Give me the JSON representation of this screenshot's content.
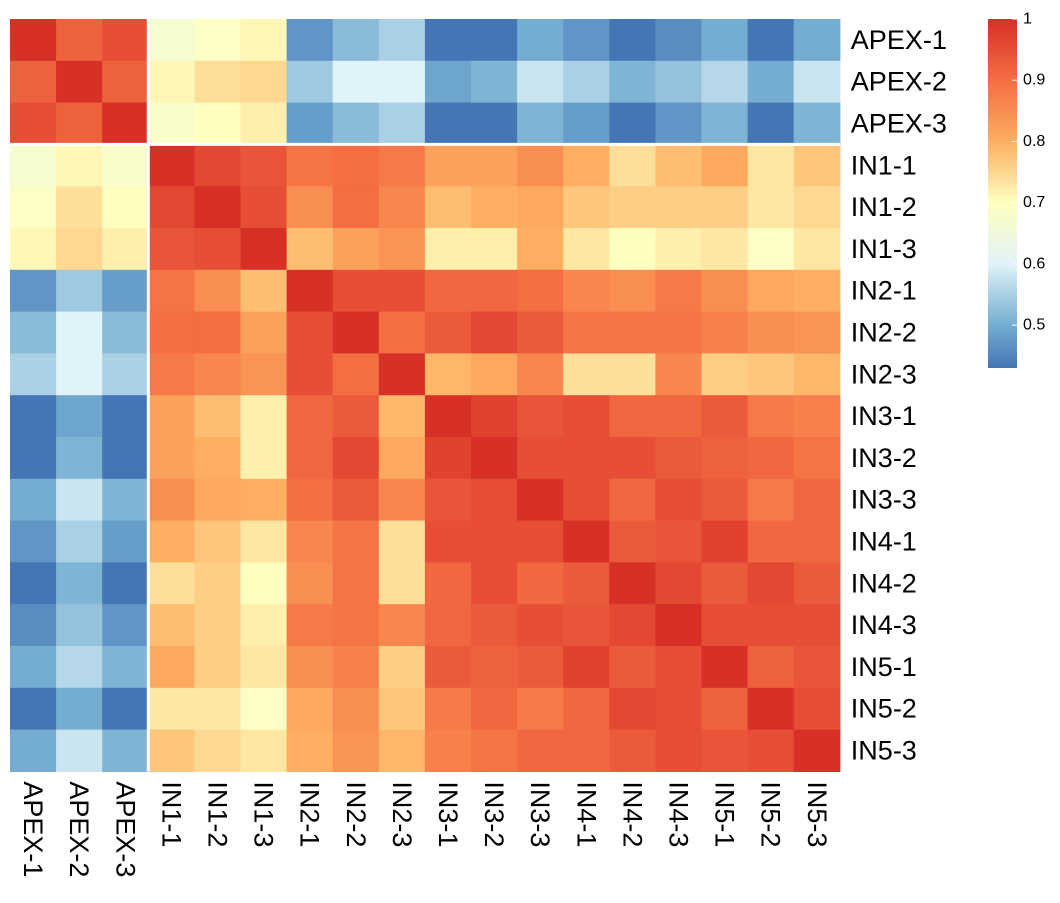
{
  "chart_data": {
    "type": "heatmap",
    "title": "",
    "xlabel": "",
    "ylabel": "",
    "row_labels": [
      "APEX-1",
      "APEX-2",
      "APEX-3",
      "IN1-1",
      "IN1-2",
      "IN1-3",
      "IN2-1",
      "IN2-2",
      "IN2-3",
      "IN3-1",
      "IN3-2",
      "IN3-3",
      "IN4-1",
      "IN4-2",
      "IN4-3",
      "IN5-1",
      "IN5-2",
      "IN5-3"
    ],
    "col_labels": [
      "APEX-1",
      "APEX-2",
      "APEX-3",
      "IN1-1",
      "IN1-2",
      "IN1-3",
      "IN2-1",
      "IN2-2",
      "IN2-3",
      "IN3-1",
      "IN3-2",
      "IN3-3",
      "IN4-1",
      "IN4-2",
      "IN4-3",
      "IN5-1",
      "IN5-2",
      "IN5-3"
    ],
    "values": [
      [
        1.0,
        0.92,
        0.95,
        0.67,
        0.69,
        0.71,
        0.47,
        0.52,
        0.55,
        0.43,
        0.43,
        0.5,
        0.47,
        0.43,
        0.46,
        0.5,
        0.43,
        0.5
      ],
      [
        0.92,
        1.0,
        0.92,
        0.71,
        0.74,
        0.75,
        0.54,
        0.6,
        0.6,
        0.49,
        0.51,
        0.58,
        0.55,
        0.51,
        0.53,
        0.56,
        0.5,
        0.58
      ],
      [
        0.95,
        0.92,
        1.0,
        0.68,
        0.7,
        0.72,
        0.48,
        0.52,
        0.55,
        0.43,
        0.43,
        0.51,
        0.48,
        0.43,
        0.47,
        0.51,
        0.43,
        0.51
      ],
      [
        0.67,
        0.71,
        0.68,
        1.0,
        0.96,
        0.94,
        0.89,
        0.9,
        0.88,
        0.82,
        0.82,
        0.85,
        0.8,
        0.74,
        0.78,
        0.81,
        0.73,
        0.77
      ],
      [
        0.69,
        0.74,
        0.7,
        0.96,
        1.0,
        0.95,
        0.85,
        0.9,
        0.86,
        0.78,
        0.8,
        0.81,
        0.77,
        0.76,
        0.76,
        0.76,
        0.73,
        0.75
      ],
      [
        0.71,
        0.75,
        0.72,
        0.94,
        0.95,
        1.0,
        0.78,
        0.82,
        0.84,
        0.72,
        0.72,
        0.8,
        0.73,
        0.7,
        0.72,
        0.73,
        0.69,
        0.73
      ],
      [
        0.47,
        0.54,
        0.48,
        0.89,
        0.85,
        0.78,
        1.0,
        0.95,
        0.95,
        0.91,
        0.91,
        0.9,
        0.86,
        0.85,
        0.88,
        0.85,
        0.81,
        0.8
      ],
      [
        0.52,
        0.6,
        0.52,
        0.9,
        0.9,
        0.82,
        0.95,
        1.0,
        0.9,
        0.93,
        0.96,
        0.93,
        0.89,
        0.89,
        0.89,
        0.87,
        0.85,
        0.84
      ],
      [
        0.55,
        0.6,
        0.55,
        0.88,
        0.86,
        0.84,
        0.95,
        0.9,
        1.0,
        0.79,
        0.81,
        0.86,
        0.74,
        0.74,
        0.86,
        0.76,
        0.77,
        0.79
      ],
      [
        0.43,
        0.49,
        0.43,
        0.82,
        0.78,
        0.72,
        0.91,
        0.93,
        0.79,
        1.0,
        0.97,
        0.94,
        0.95,
        0.91,
        0.91,
        0.93,
        0.88,
        0.87
      ],
      [
        0.43,
        0.51,
        0.43,
        0.82,
        0.8,
        0.72,
        0.91,
        0.96,
        0.81,
        0.97,
        1.0,
        0.95,
        0.95,
        0.95,
        0.93,
        0.92,
        0.91,
        0.89
      ],
      [
        0.5,
        0.58,
        0.51,
        0.85,
        0.81,
        0.8,
        0.9,
        0.93,
        0.86,
        0.94,
        0.95,
        1.0,
        0.95,
        0.91,
        0.95,
        0.93,
        0.88,
        0.91
      ],
      [
        0.47,
        0.55,
        0.48,
        0.8,
        0.77,
        0.73,
        0.86,
        0.89,
        0.74,
        0.95,
        0.95,
        0.95,
        1.0,
        0.93,
        0.94,
        0.97,
        0.91,
        0.91
      ],
      [
        0.43,
        0.51,
        0.43,
        0.74,
        0.76,
        0.7,
        0.85,
        0.89,
        0.74,
        0.91,
        0.95,
        0.91,
        0.93,
        1.0,
        0.96,
        0.93,
        0.96,
        0.93
      ],
      [
        0.46,
        0.53,
        0.47,
        0.78,
        0.76,
        0.72,
        0.88,
        0.89,
        0.86,
        0.91,
        0.93,
        0.95,
        0.94,
        0.96,
        1.0,
        0.95,
        0.95,
        0.95
      ],
      [
        0.5,
        0.56,
        0.51,
        0.81,
        0.76,
        0.73,
        0.85,
        0.87,
        0.76,
        0.93,
        0.92,
        0.93,
        0.97,
        0.93,
        0.95,
        1.0,
        0.92,
        0.94
      ],
      [
        0.43,
        0.5,
        0.43,
        0.73,
        0.73,
        0.69,
        0.81,
        0.85,
        0.77,
        0.88,
        0.91,
        0.88,
        0.91,
        0.96,
        0.95,
        0.92,
        1.0,
        0.95
      ],
      [
        0.5,
        0.58,
        0.51,
        0.77,
        0.75,
        0.73,
        0.8,
        0.84,
        0.79,
        0.87,
        0.89,
        0.91,
        0.91,
        0.93,
        0.95,
        0.94,
        0.95,
        1.0
      ]
    ],
    "color_scale": {
      "min": 0.43,
      "max": 1.0,
      "stops": [
        {
          "value": 0.43,
          "color": "#4575b4"
        },
        {
          "value": 0.5,
          "color": "#74add1"
        },
        {
          "value": 0.6,
          "color": "#e0f3f8"
        },
        {
          "value": 0.7,
          "color": "#ffffbf"
        },
        {
          "value": 0.8,
          "color": "#fdae61"
        },
        {
          "value": 0.9,
          "color": "#f46d43"
        },
        {
          "value": 1.0,
          "color": "#d73027"
        }
      ]
    },
    "legend": {
      "placement": "top-right",
      "ticks": [
        {
          "value": 1.0,
          "label": "1"
        },
        {
          "value": 0.9,
          "label": "0.9"
        },
        {
          "value": 0.8,
          "label": "0.8"
        },
        {
          "value": 0.7,
          "label": "0.7"
        },
        {
          "value": 0.6,
          "label": "0.6"
        },
        {
          "value": 0.5,
          "label": "0.5"
        }
      ]
    },
    "block_dividers_after_index": [
      2
    ]
  }
}
